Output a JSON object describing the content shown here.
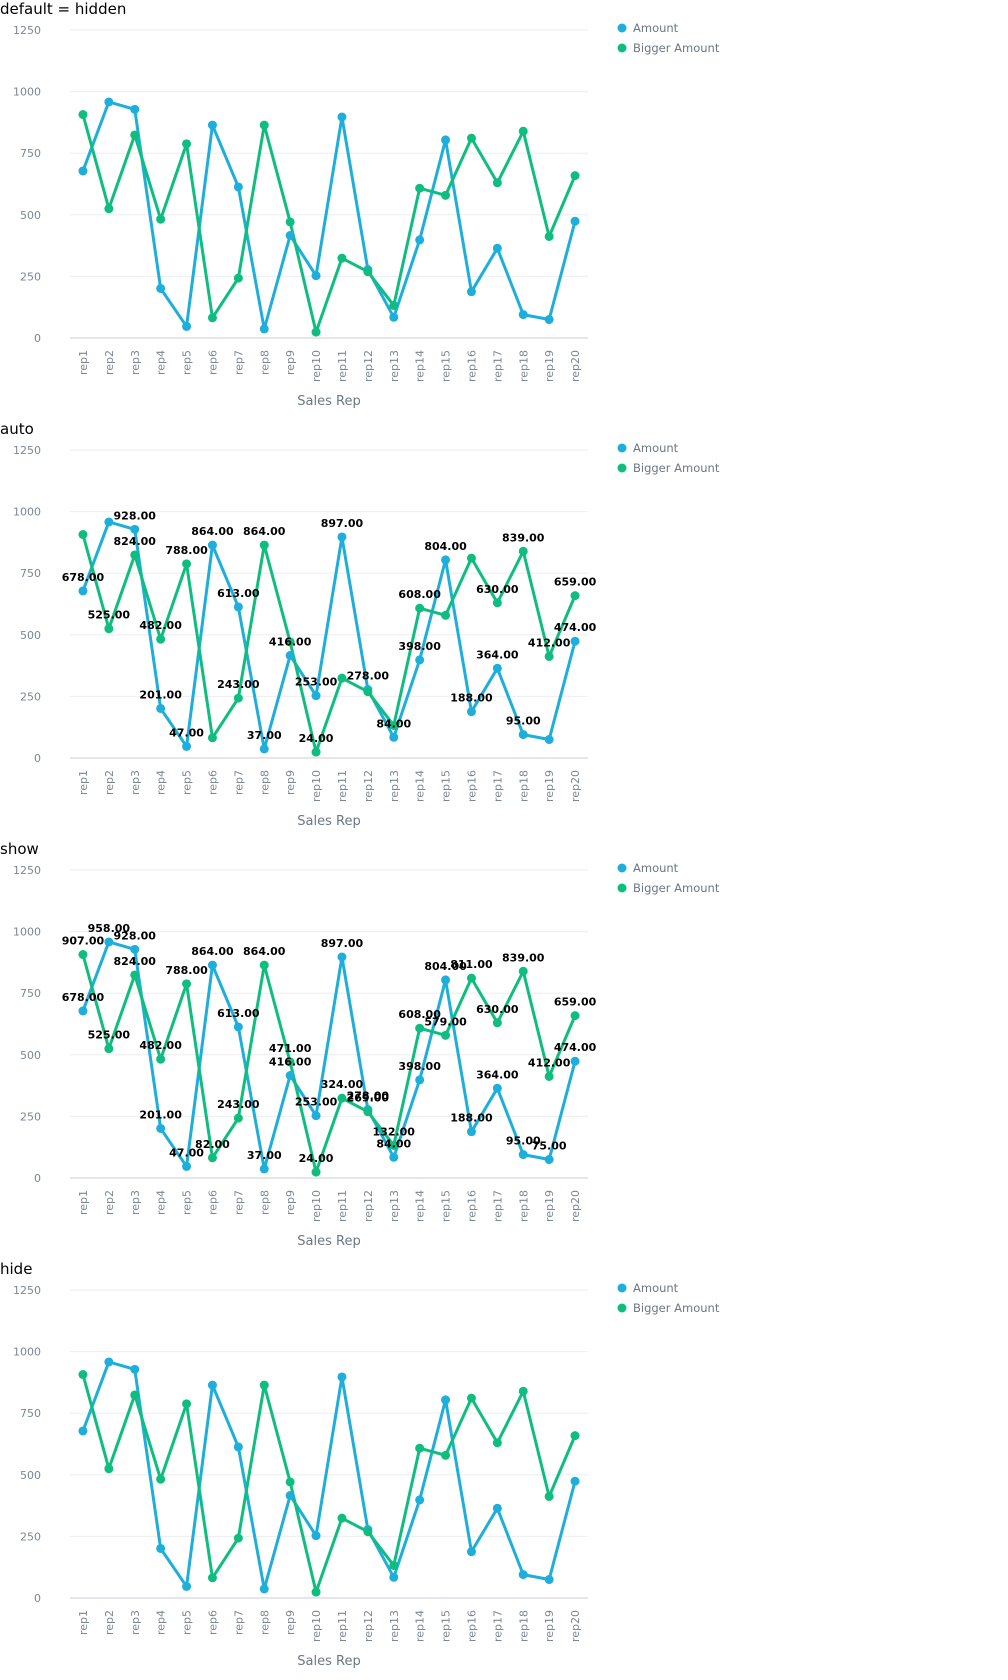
{
  "chart_data": [
    {
      "type": "line",
      "title": "default = hidden",
      "labels_mode": "none",
      "categories": [
        "rep1",
        "rep2",
        "rep3",
        "rep4",
        "rep5",
        "rep6",
        "rep7",
        "rep8",
        "rep9",
        "rep10",
        "rep11",
        "rep12",
        "rep13",
        "rep14",
        "rep15",
        "rep16",
        "rep17",
        "rep18",
        "rep19",
        "rep20"
      ],
      "series": [
        {
          "name": "Amount",
          "color": "#1eaedb",
          "values": [
            678,
            958,
            928,
            201,
            47,
            864,
            613,
            37,
            416,
            253,
            897,
            278,
            84,
            398,
            804,
            188,
            364,
            95,
            75,
            474
          ]
        },
        {
          "name": "Bigger Amount",
          "color": "#0fbe7f",
          "values": [
            907,
            525,
            824,
            482,
            788,
            82,
            243,
            864,
            471,
            24,
            324,
            269,
            132,
            608,
            579,
            811,
            630,
            839,
            412,
            659
          ]
        }
      ],
      "xlabel": "Sales Rep",
      "ylim": [
        0,
        1250
      ],
      "yticks": [
        0,
        250,
        500,
        750,
        1000,
        1250
      ],
      "grid": true,
      "legend": "top-right"
    },
    {
      "type": "line",
      "title": "auto",
      "labels_mode": "auto",
      "categories": [
        "rep1",
        "rep2",
        "rep3",
        "rep4",
        "rep5",
        "rep6",
        "rep7",
        "rep8",
        "rep9",
        "rep10",
        "rep11",
        "rep12",
        "rep13",
        "rep14",
        "rep15",
        "rep16",
        "rep17",
        "rep18",
        "rep19",
        "rep20"
      ],
      "series": [
        {
          "name": "Amount",
          "color": "#1eaedb",
          "values": [
            678,
            958,
            928,
            201,
            47,
            864,
            613,
            37,
            416,
            253,
            897,
            278,
            84,
            398,
            804,
            188,
            364,
            95,
            75,
            474
          ]
        },
        {
          "name": "Bigger Amount",
          "color": "#0fbe7f",
          "values": [
            907,
            525,
            824,
            482,
            788,
            82,
            243,
            864,
            471,
            24,
            324,
            269,
            132,
            608,
            579,
            811,
            630,
            839,
            412,
            659
          ]
        }
      ],
      "data_labels": [
        {
          "series": 0,
          "index": 0,
          "text": "678.00"
        },
        {
          "series": 0,
          "index": 2,
          "text": "928.00"
        },
        {
          "series": 1,
          "index": 2,
          "text": "824.00"
        },
        {
          "series": 1,
          "index": 1,
          "text": "525.00"
        },
        {
          "series": 1,
          "index": 3,
          "text": "482.00"
        },
        {
          "series": 0,
          "index": 3,
          "text": "201.00"
        },
        {
          "series": 1,
          "index": 4,
          "text": "788.00"
        },
        {
          "series": 0,
          "index": 4,
          "text": "47.00"
        },
        {
          "series": 0,
          "index": 5,
          "text": "864.00"
        },
        {
          "series": 0,
          "index": 6,
          "text": "613.00"
        },
        {
          "series": 1,
          "index": 6,
          "text": "243.00"
        },
        {
          "series": 1,
          "index": 7,
          "text": "864.00"
        },
        {
          "series": 0,
          "index": 7,
          "text": "37.00"
        },
        {
          "series": 0,
          "index": 8,
          "text": "416.00"
        },
        {
          "series": 0,
          "index": 9,
          "text": "253.00"
        },
        {
          "series": 1,
          "index": 9,
          "text": "24.00"
        },
        {
          "series": 0,
          "index": 10,
          "text": "897.00"
        },
        {
          "series": 0,
          "index": 11,
          "text": "278.00"
        },
        {
          "series": 0,
          "index": 12,
          "text": "84.00"
        },
        {
          "series": 1,
          "index": 13,
          "text": "608.00"
        },
        {
          "series": 0,
          "index": 13,
          "text": "398.00"
        },
        {
          "series": 0,
          "index": 14,
          "text": "804.00"
        },
        {
          "series": 0,
          "index": 15,
          "text": "188.00"
        },
        {
          "series": 1,
          "index": 16,
          "text": "630.00"
        },
        {
          "series": 0,
          "index": 16,
          "text": "364.00"
        },
        {
          "series": 1,
          "index": 17,
          "text": "839.00"
        },
        {
          "series": 0,
          "index": 17,
          "text": "95.00"
        },
        {
          "series": 1,
          "index": 18,
          "text": "412.00"
        },
        {
          "series": 1,
          "index": 19,
          "text": "659.00"
        },
        {
          "series": 0,
          "index": 19,
          "text": "474.00"
        }
      ],
      "xlabel": "Sales Rep",
      "ylim": [
        0,
        1250
      ],
      "yticks": [
        0,
        250,
        500,
        750,
        1000,
        1250
      ],
      "grid": true,
      "legend": "top-right"
    },
    {
      "type": "line",
      "title": "show",
      "labels_mode": "all",
      "categories": [
        "rep1",
        "rep2",
        "rep3",
        "rep4",
        "rep5",
        "rep6",
        "rep7",
        "rep8",
        "rep9",
        "rep10",
        "rep11",
        "rep12",
        "rep13",
        "rep14",
        "rep15",
        "rep16",
        "rep17",
        "rep18",
        "rep19",
        "rep20"
      ],
      "series": [
        {
          "name": "Amount",
          "color": "#1eaedb",
          "values": [
            678,
            958,
            928,
            201,
            47,
            864,
            613,
            37,
            416,
            253,
            897,
            278,
            84,
            398,
            804,
            188,
            364,
            95,
            75,
            474
          ]
        },
        {
          "name": "Bigger Amount",
          "color": "#0fbe7f",
          "values": [
            907,
            525,
            824,
            482,
            788,
            82,
            243,
            864,
            471,
            24,
            324,
            269,
            132,
            608,
            579,
            811,
            630,
            839,
            412,
            659
          ]
        }
      ],
      "data_labels": [
        {
          "series": 1,
          "index": 0,
          "text": "907.00"
        },
        {
          "series": 0,
          "index": 0,
          "text": "678.00"
        },
        {
          "series": 0,
          "index": 1,
          "text": "958.00"
        },
        {
          "series": 1,
          "index": 1,
          "text": "525.00"
        },
        {
          "series": 0,
          "index": 2,
          "text": "928.00"
        },
        {
          "series": 1,
          "index": 2,
          "text": "824.00"
        },
        {
          "series": 1,
          "index": 3,
          "text": "482.00"
        },
        {
          "series": 0,
          "index": 3,
          "text": "201.00"
        },
        {
          "series": 1,
          "index": 4,
          "text": "788.00"
        },
        {
          "series": 0,
          "index": 4,
          "text": "47.00"
        },
        {
          "series": 0,
          "index": 5,
          "text": "864.00"
        },
        {
          "series": 1,
          "index": 5,
          "text": "82.00"
        },
        {
          "series": 0,
          "index": 6,
          "text": "613.00"
        },
        {
          "series": 1,
          "index": 6,
          "text": "243.00"
        },
        {
          "series": 1,
          "index": 7,
          "text": "864.00"
        },
        {
          "series": 0,
          "index": 7,
          "text": "37.00"
        },
        {
          "series": 1,
          "index": 8,
          "text": "471.00"
        },
        {
          "series": 0,
          "index": 8,
          "text": "416.00"
        },
        {
          "series": 0,
          "index": 9,
          "text": "253.00"
        },
        {
          "series": 1,
          "index": 9,
          "text": "24.00"
        },
        {
          "series": 0,
          "index": 10,
          "text": "897.00"
        },
        {
          "series": 1,
          "index": 10,
          "text": "324.00"
        },
        {
          "series": 0,
          "index": 11,
          "text": "278.00"
        },
        {
          "series": 1,
          "index": 11,
          "text": "269.00"
        },
        {
          "series": 1,
          "index": 12,
          "text": "132.00"
        },
        {
          "series": 0,
          "index": 12,
          "text": "84.00"
        },
        {
          "series": 1,
          "index": 13,
          "text": "608.00"
        },
        {
          "series": 0,
          "index": 13,
          "text": "398.00"
        },
        {
          "series": 0,
          "index": 14,
          "text": "804.00"
        },
        {
          "series": 1,
          "index": 14,
          "text": "579.00"
        },
        {
          "series": 1,
          "index": 15,
          "text": "811.00"
        },
        {
          "series": 0,
          "index": 15,
          "text": "188.00"
        },
        {
          "series": 1,
          "index": 16,
          "text": "630.00"
        },
        {
          "series": 0,
          "index": 16,
          "text": "364.00"
        },
        {
          "series": 1,
          "index": 17,
          "text": "839.00"
        },
        {
          "series": 0,
          "index": 17,
          "text": "95.00"
        },
        {
          "series": 0,
          "index": 18,
          "text": "75.00"
        },
        {
          "series": 1,
          "index": 18,
          "text": "412.00"
        },
        {
          "series": 1,
          "index": 19,
          "text": "659.00"
        },
        {
          "series": 0,
          "index": 19,
          "text": "474.00"
        }
      ],
      "xlabel": "Sales Rep",
      "ylim": [
        0,
        1250
      ],
      "yticks": [
        0,
        250,
        500,
        750,
        1000,
        1250
      ],
      "grid": true,
      "legend": "top-right"
    },
    {
      "type": "line",
      "title": "hide",
      "labels_mode": "none",
      "categories": [
        "rep1",
        "rep2",
        "rep3",
        "rep4",
        "rep5",
        "rep6",
        "rep7",
        "rep8",
        "rep9",
        "rep10",
        "rep11",
        "rep12",
        "rep13",
        "rep14",
        "rep15",
        "rep16",
        "rep17",
        "rep18",
        "rep19",
        "rep20"
      ],
      "series": [
        {
          "name": "Amount",
          "color": "#1eaedb",
          "values": [
            678,
            958,
            928,
            201,
            47,
            864,
            613,
            37,
            416,
            253,
            897,
            278,
            84,
            398,
            804,
            188,
            364,
            95,
            75,
            474
          ]
        },
        {
          "name": "Bigger Amount",
          "color": "#0fbe7f",
          "values": [
            907,
            525,
            824,
            482,
            788,
            82,
            243,
            864,
            471,
            24,
            324,
            269,
            132,
            608,
            579,
            811,
            630,
            839,
            412,
            659
          ]
        }
      ],
      "xlabel": "Sales Rep",
      "ylim": [
        0,
        1250
      ],
      "yticks": [
        0,
        250,
        500,
        750,
        1000,
        1250
      ],
      "grid": true,
      "legend": "top-right"
    }
  ]
}
